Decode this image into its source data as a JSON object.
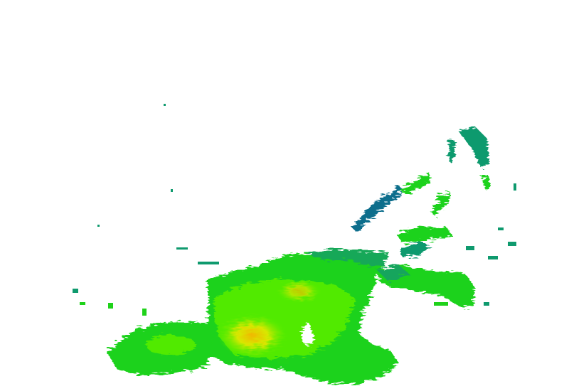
{
  "colors": {
    "background": "#ffffff",
    "light_echo": "#0a6e8c",
    "teal_echo": "#0f9a6e",
    "green_echo": "#1fd21a",
    "bright_green_echo": "#5ef000",
    "yellow_echo": "#d8e800",
    "orange_echo": "#f0b800"
  },
  "layers": [
    {
      "name": "main-precipitation-cell"
    },
    {
      "name": "southwest-band"
    },
    {
      "name": "northeast-streaks"
    },
    {
      "name": "east-band"
    },
    {
      "name": "scattered-returns"
    }
  ]
}
